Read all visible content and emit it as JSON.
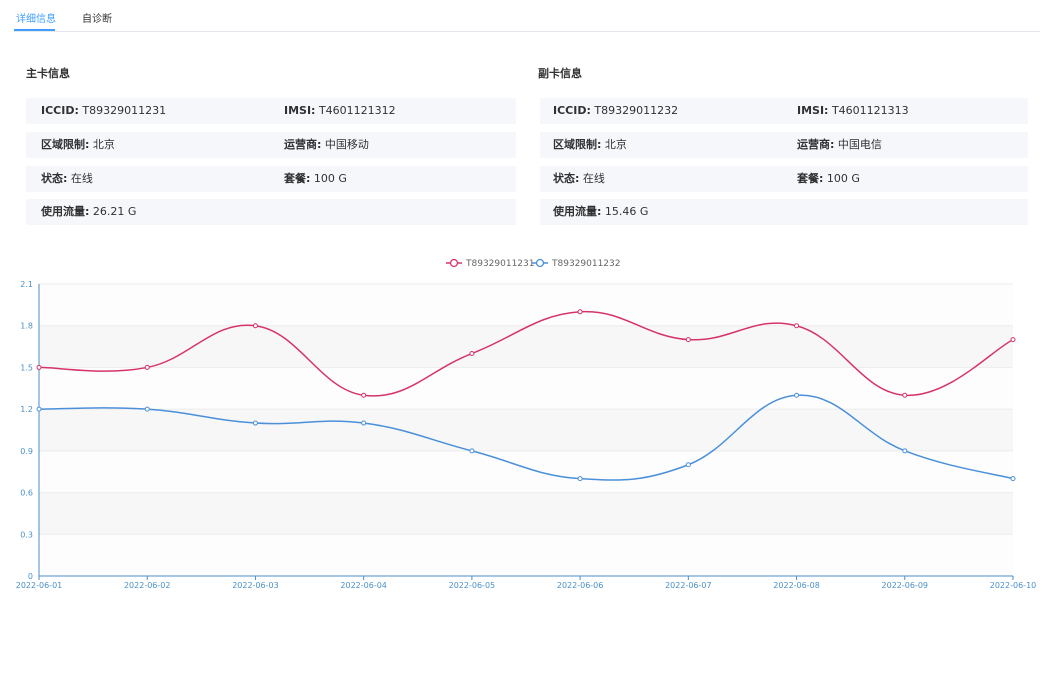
{
  "tabs": [
    {
      "label": "详细信息",
      "active": true
    },
    {
      "label": "自诊断",
      "active": false
    }
  ],
  "primary": {
    "title": "主卡信息",
    "iccid_label": "ICCID:",
    "iccid": "T89329011231",
    "imsi_label": "IMSI:",
    "imsi": "T4601121312",
    "region_label": "区域限制:",
    "region": "北京",
    "carrier_label": "运营商:",
    "carrier": "中国移动",
    "status_label": "状态:",
    "status": "在线",
    "plan_label": "套餐:",
    "plan": "100 G",
    "usage_label": "使用流量:",
    "usage": "26.21 G"
  },
  "secondary": {
    "title": "副卡信息",
    "iccid_label": "ICCID:",
    "iccid": "T89329011232",
    "imsi_label": "IMSI:",
    "imsi": "T4601121313",
    "region_label": "区域限制:",
    "region": "北京",
    "carrier_label": "运营商:",
    "carrier": "中国电信",
    "status_label": "状态:",
    "status": "在线",
    "plan_label": "套餐:",
    "plan": "100 G",
    "usage_label": "使用流量:",
    "usage": "15.46 G"
  },
  "colors": {
    "series1": "#d6336c",
    "series2": "#4a90d9",
    "axis": "#4a90c9",
    "accent": "#409eff"
  },
  "chart_data": {
    "type": "line",
    "smooth": true,
    "x": [
      "2022-06-01",
      "2022-06-02",
      "2022-06-03",
      "2022-06-04",
      "2022-06-05",
      "2022-06-06",
      "2022-06-07",
      "2022-06-08",
      "2022-06-09",
      "2022-06-10"
    ],
    "series": [
      {
        "name": "T89329011231",
        "values": [
          1.5,
          1.5,
          1.8,
          1.3,
          1.6,
          1.9,
          1.7,
          1.8,
          1.3,
          1.7
        ]
      },
      {
        "name": "T89329011232",
        "values": [
          1.2,
          1.2,
          1.1,
          1.1,
          0.9,
          0.7,
          0.8,
          1.3,
          0.9,
          0.7
        ]
      }
    ],
    "yticks": [
      "0",
      "0.3",
      "0.6",
      "0.9",
      "1.2",
      "1.5",
      "1.8",
      "2.1"
    ],
    "ylim": [
      0,
      2.1
    ],
    "legend": "top-center",
    "split_area": true
  }
}
